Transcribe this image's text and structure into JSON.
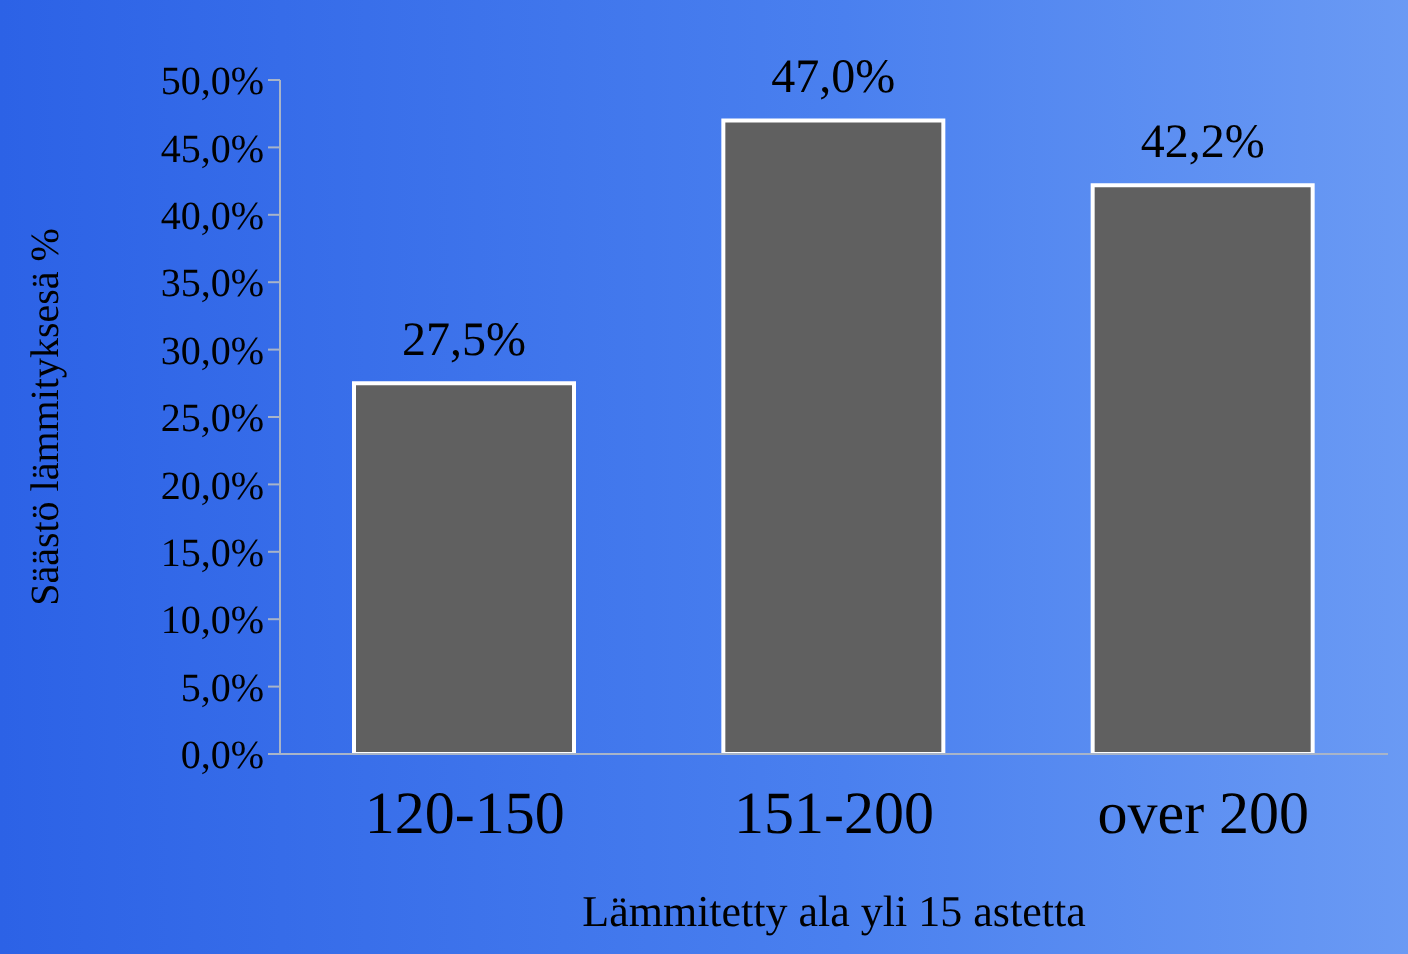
{
  "chart_data": {
    "type": "bar",
    "xlabel": "Lämmitetty ala yli 15 astetta",
    "ylabel": "Säästö lämmityksesä %",
    "categories": [
      "120-150",
      "151-200",
      "over 200"
    ],
    "values": [
      27.5,
      47.0,
      42.2
    ],
    "value_labels": [
      "27,5%",
      "47,0%",
      "42,2%"
    ],
    "color": "#606060",
    "ylim": [
      0,
      50
    ],
    "yticks": [
      {
        "value": 0,
        "label": "0,0%"
      },
      {
        "value": 5,
        "label": "5,0%"
      },
      {
        "value": 10,
        "label": "10,0%"
      },
      {
        "value": 15,
        "label": "15,0%"
      },
      {
        "value": 20,
        "label": "20,0%"
      },
      {
        "value": 25,
        "label": "25,0%"
      },
      {
        "value": 30,
        "label": "30,0%"
      },
      {
        "value": 35,
        "label": "35,0%"
      },
      {
        "value": 40,
        "label": "40,0%"
      },
      {
        "value": 45,
        "label": "45,0%"
      },
      {
        "value": 50,
        "label": "50,0%"
      }
    ],
    "grid": false,
    "legend": false
  }
}
